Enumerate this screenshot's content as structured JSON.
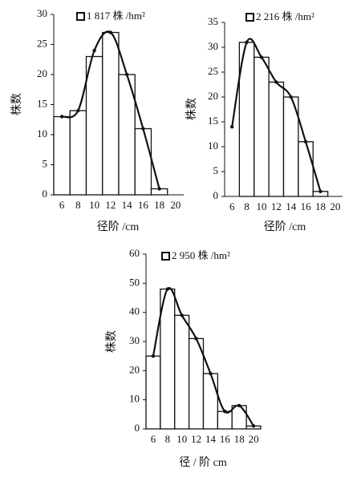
{
  "chart_data": [
    {
      "type": "bar",
      "xlabel": "径阶 /cm",
      "ylabel": "株数",
      "categories": [
        "6",
        "8",
        "10",
        "12",
        "14",
        "16",
        "18",
        "20"
      ],
      "series": [
        {
          "name": "1 817 株 /hm²",
          "color": "#ffffff",
          "values": [
            13,
            14,
            23,
            27,
            20,
            11,
            1,
            null
          ]
        },
        {
          "color": "#111111",
          "values": [
            13,
            14,
            24,
            27,
            20,
            11,
            1,
            null
          ]
        }
      ],
      "ylim": [
        0,
        30
      ],
      "yticks": [
        0,
        5,
        10,
        15,
        20,
        25,
        30
      ]
    },
    {
      "type": "bar",
      "xlabel": "径阶 /cm",
      "ylabel": "株数",
      "categories": [
        "6",
        "8",
        "10",
        "12",
        "14",
        "16",
        "18",
        "20"
      ],
      "series": [
        {
          "name": "2 216 株 /hm²",
          "color": "#ffffff",
          "values": [
            null,
            31,
            28,
            23,
            20,
            11,
            1,
            null
          ]
        },
        {
          "color": "#111111",
          "values": [
            14,
            31,
            28,
            23,
            20,
            11,
            1,
            null
          ]
        }
      ],
      "ylim": [
        0,
        35
      ],
      "yticks": [
        0,
        5,
        10,
        15,
        20,
        25,
        30,
        35
      ]
    },
    {
      "type": "bar",
      "xlabel": "径 / 阶 cm",
      "ylabel": "株数",
      "categories": [
        "6",
        "8",
        "10",
        "12",
        "14",
        "16",
        "18",
        "20"
      ],
      "series": [
        {
          "name": "2 950 株 /hm²",
          "color": "#ffffff",
          "values": [
            25,
            48,
            39,
            31,
            19,
            6,
            8,
            1
          ]
        },
        {
          "color": "#111111",
          "values": [
            25,
            48,
            39,
            31,
            19,
            6,
            8,
            1
          ]
        }
      ],
      "ylim": [
        0,
        60
      ],
      "yticks": [
        0,
        10,
        20,
        30,
        40,
        50,
        60
      ]
    }
  ]
}
